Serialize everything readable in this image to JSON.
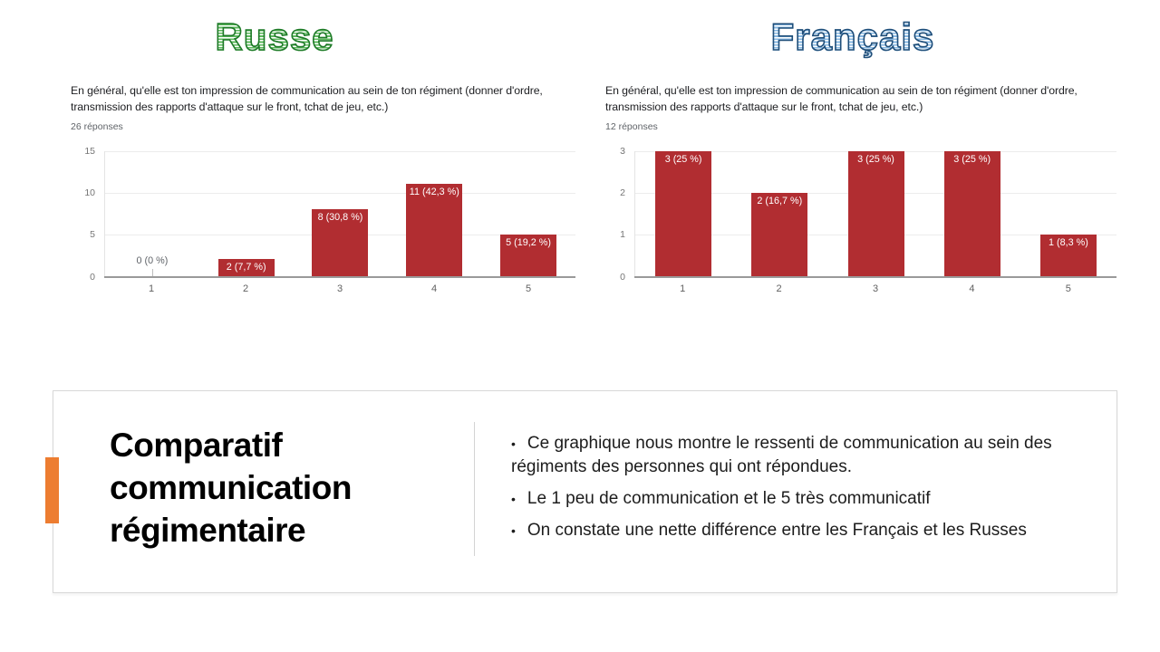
{
  "slide": {
    "left_title": "Russe",
    "right_title": "Français",
    "colors": {
      "bar_red": "#b12d31",
      "accent_orange": "#ED7D31",
      "russe_stroke": "#1e7a28",
      "francais_stroke": "#1f4e79"
    }
  },
  "chart_data": [
    {
      "type": "bar",
      "title": "En général, qu'elle est ton impression de communication au sein de ton régiment (donner d'ordre, transmission des rapports d'attaque sur le front, tchat de jeu, etc.)",
      "subtitle": "26 réponses",
      "categories": [
        "1",
        "2",
        "3",
        "4",
        "5"
      ],
      "values": [
        0,
        2,
        8,
        11,
        5
      ],
      "labels": [
        "0 (0 %)",
        "2 (7,7 %)",
        "8 (30,8 %)",
        "11 (42,3 %)",
        "5 (19,2 %)"
      ],
      "ylim": [
        0,
        15
      ],
      "yticks": [
        0,
        5,
        10,
        15
      ],
      "bar_color": "#b12d31",
      "grid": true,
      "legend": "none"
    },
    {
      "type": "bar",
      "title": "En général, qu'elle est ton impression de communication au sein de ton régiment (donner d'ordre, transmission des rapports d'attaque sur le front, tchat de jeu, etc.)",
      "subtitle": "12 réponses",
      "categories": [
        "1",
        "2",
        "3",
        "4",
        "5"
      ],
      "values": [
        3,
        2,
        3,
        3,
        1
      ],
      "labels": [
        "3 (25 %)",
        "2 (16,7 %)",
        "3 (25 %)",
        "3 (25 %)",
        "1 (8,3 %)"
      ],
      "ylim": [
        0,
        3
      ],
      "yticks": [
        0,
        1,
        2,
        3
      ],
      "bar_color": "#b12d31",
      "grid": true,
      "legend": "none"
    }
  ],
  "bottom_card": {
    "title": "Comparatif communication régimentaire",
    "bullet_char": "•",
    "bullets": [
      "Ce graphique nous montre le ressenti de communication au sein des régiments des personnes qui ont répondues.",
      "Le 1 peu de communication et le 5 très communicatif",
      "On constate une nette différence entre les Français et les Russes"
    ]
  }
}
